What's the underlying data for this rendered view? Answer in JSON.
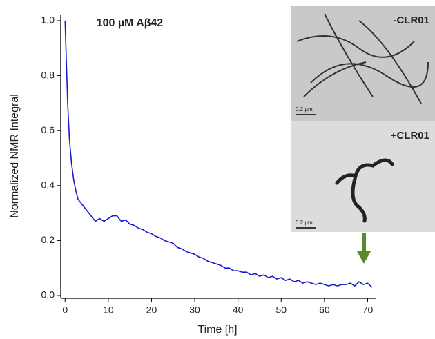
{
  "chart_data": {
    "type": "line",
    "annotation": "100 µM Aβ42",
    "x_label": "Time [h]",
    "y_label": "Normalized NMR Integral",
    "x": [
      0,
      0.3,
      0.6,
      1,
      1.5,
      2,
      2.5,
      3,
      3.5,
      4,
      5,
      6,
      7,
      8,
      9,
      10,
      11,
      12,
      13,
      14,
      15,
      16,
      17,
      18,
      19,
      20,
      21,
      22,
      23,
      24,
      25,
      26,
      27,
      28,
      29,
      30,
      31,
      32,
      33,
      34,
      35,
      36,
      37,
      38,
      39,
      40,
      41,
      42,
      43,
      44,
      45,
      46,
      47,
      48,
      49,
      50,
      51,
      52,
      53,
      54,
      55,
      56,
      57,
      58,
      59,
      60,
      61,
      62,
      63,
      64,
      65,
      66,
      67,
      68,
      69,
      70,
      71
    ],
    "series": [
      {
        "name": "100 µM Aβ42",
        "color": "#1a1acc",
        "values": [
          1.0,
          0.85,
          0.7,
          0.57,
          0.48,
          0.42,
          0.38,
          0.35,
          0.34,
          0.33,
          0.31,
          0.29,
          0.27,
          0.28,
          0.27,
          0.28,
          0.29,
          0.29,
          0.27,
          0.275,
          0.26,
          0.255,
          0.245,
          0.24,
          0.23,
          0.225,
          0.215,
          0.21,
          0.2,
          0.195,
          0.19,
          0.175,
          0.17,
          0.16,
          0.155,
          0.15,
          0.14,
          0.135,
          0.125,
          0.12,
          0.115,
          0.11,
          0.1,
          0.1,
          0.09,
          0.09,
          0.085,
          0.085,
          0.075,
          0.08,
          0.07,
          0.075,
          0.065,
          0.07,
          0.06,
          0.065,
          0.055,
          0.06,
          0.05,
          0.055,
          0.045,
          0.05,
          0.045,
          0.04,
          0.045,
          0.04,
          0.035,
          0.04,
          0.035,
          0.04,
          0.04,
          0.045,
          0.035,
          0.05,
          0.04,
          0.045,
          0.03
        ]
      }
    ],
    "xlim": [
      -1,
      72
    ],
    "ylim": [
      -0.01,
      1.02
    ],
    "xticks": [
      0,
      10,
      20,
      30,
      40,
      50,
      60,
      70
    ],
    "yticks": [
      {
        "value": 0,
        "label": "0,0"
      },
      {
        "value": 0.2,
        "label": "0,2"
      },
      {
        "value": 0.4,
        "label": "0,4"
      },
      {
        "value": 0.6,
        "label": "0,6"
      },
      {
        "value": 0.8,
        "label": "0,8"
      },
      {
        "value": 1.0,
        "label": "1,0"
      }
    ],
    "insets": [
      {
        "label": "-CLR01",
        "scale_bar": "0.2 µm"
      },
      {
        "label": "+CLR01",
        "scale_bar": "0.2 µm"
      }
    ]
  }
}
